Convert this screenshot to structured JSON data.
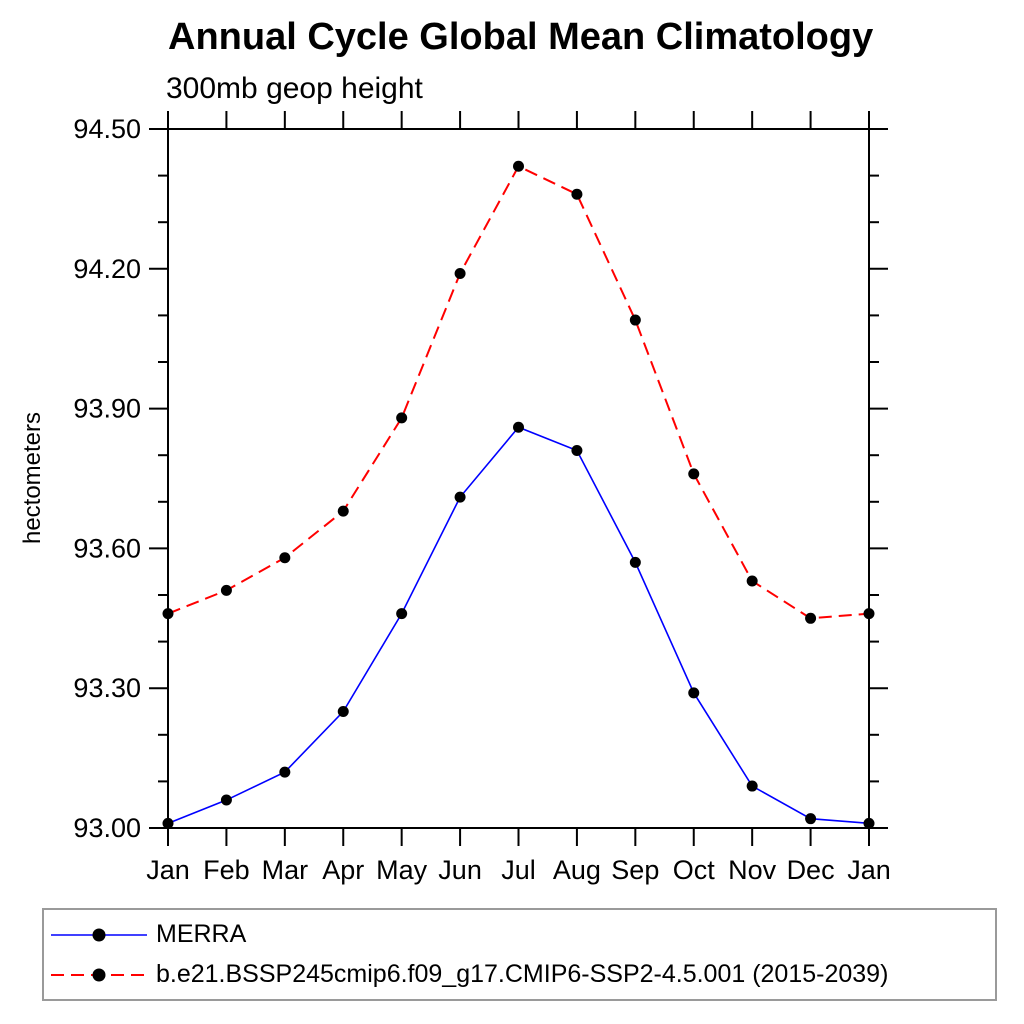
{
  "chart_data": {
    "type": "line",
    "title": "Annual Cycle Global Mean Climatology",
    "subtitle": "300mb geop height",
    "ylabel": "hectometers",
    "x_labels": [
      "Jan",
      "Feb",
      "Mar",
      "Apr",
      "May",
      "Jun",
      "Jul",
      "Aug",
      "Sep",
      "Oct",
      "Nov",
      "Dec",
      "Jan"
    ],
    "ylim": [
      93.0,
      94.5
    ],
    "yticks_major": [
      {
        "value": 93.0,
        "label": "93.00"
      },
      {
        "value": 93.3,
        "label": "93.30"
      },
      {
        "value": 93.6,
        "label": "93.60"
      },
      {
        "value": 93.9,
        "label": "93.90"
      },
      {
        "value": 94.2,
        "label": "94.20"
      },
      {
        "value": 94.5,
        "label": "94.50"
      }
    ],
    "yticks_minor": [
      93.1,
      93.2,
      93.4,
      93.5,
      93.7,
      93.8,
      94.0,
      94.1,
      94.3,
      94.4
    ],
    "grid": false,
    "legend_position": "bottom-left-box",
    "series": [
      {
        "id": "merra",
        "name": "MERRA",
        "color": "#0000ff",
        "line_style": "solid",
        "marker": "filled-circle",
        "marker_color": "#000000",
        "values": [
          93.01,
          93.06,
          93.12,
          93.25,
          93.46,
          93.71,
          93.86,
          93.81,
          93.57,
          93.29,
          93.09,
          93.02,
          93.01
        ]
      },
      {
        "id": "model",
        "name": "b.e21.BSSP245cmip6.f09_g17.CMIP6-SSP2-4.5.001 (2015-2039)",
        "color": "#ff0000",
        "line_style": "dashed",
        "marker": "filled-circle",
        "marker_color": "#000000",
        "values": [
          93.46,
          93.51,
          93.58,
          93.68,
          93.88,
          94.19,
          94.42,
          94.36,
          94.09,
          93.76,
          93.53,
          93.45,
          93.46
        ]
      }
    ]
  }
}
